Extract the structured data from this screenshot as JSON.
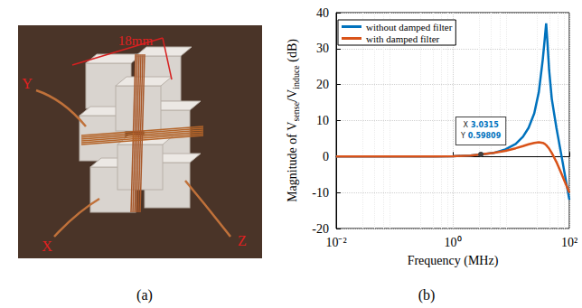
{
  "photo": {
    "caption": "(a)",
    "dimension": "18mm",
    "axes": [
      "Y",
      "X",
      "Z"
    ]
  },
  "chart_data": {
    "type": "line",
    "caption": "(b)",
    "xlabel": "Frequency (MHz)",
    "ylabel": [
      "Magnitude of V",
      "sense",
      "/V",
      "induce",
      "(dB)"
    ],
    "log": "x",
    "grid": true,
    "legend": "upper left",
    "xlim": [
      0.01,
      100
    ],
    "xticks": [
      {
        "value": 0.01,
        "label": "10⁻²"
      },
      {
        "value": 1,
        "label": "10⁰"
      },
      {
        "value": 100,
        "label": "10²"
      }
    ],
    "ylim": [
      -20,
      40
    ],
    "yticks": [
      -20,
      -10,
      0,
      10,
      20,
      30,
      40
    ],
    "x": [
      0.01,
      0.1,
      0.5,
      1,
      2,
      3.0315,
      5,
      8,
      12,
      16,
      20,
      25,
      30,
      35,
      38,
      40,
      42,
      45,
      50,
      60,
      70,
      100
    ],
    "series": [
      {
        "name": "without damped filter",
        "color": "#0072BD",
        "values": [
          0,
          0,
          0.02,
          0.1,
          0.3,
          0.6,
          1.0,
          2.0,
          3.5,
          5.5,
          8,
          12,
          18,
          27,
          33,
          37,
          32,
          24,
          16,
          8,
          2,
          -12
        ]
      },
      {
        "name": "with damped filter",
        "color": "#D95319",
        "values": [
          0,
          0,
          0.02,
          0.1,
          0.3,
          0.6,
          1.0,
          1.6,
          2.3,
          2.9,
          3.4,
          3.8,
          4.0,
          3.8,
          3.5,
          3.2,
          2.8,
          2.2,
          1.0,
          -1.5,
          -4,
          -10
        ]
      }
    ],
    "datatip": {
      "x": 3.0315,
      "y": 0.59809,
      "x_label": "X",
      "y_label": "Y",
      "series": "with damped filter"
    }
  }
}
